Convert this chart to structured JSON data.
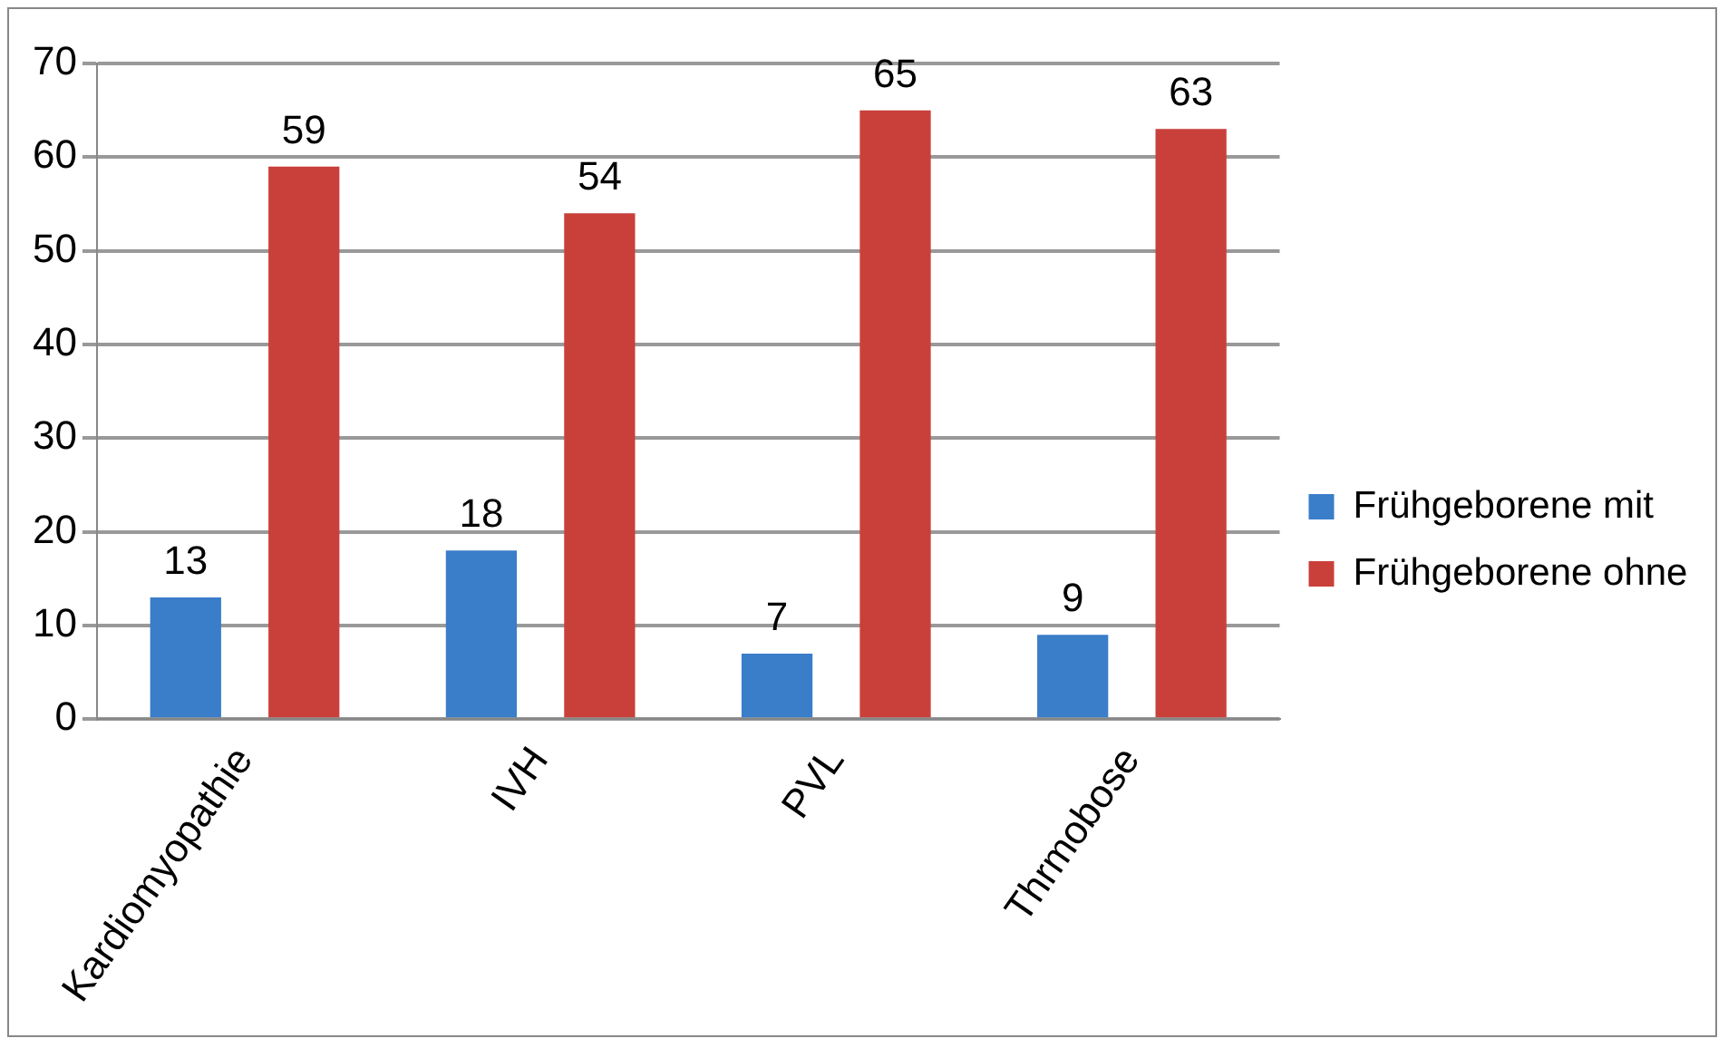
{
  "chart_data": {
    "type": "bar",
    "categories": [
      "Kardiomyopathie",
      "IVH",
      "PVL",
      "Thrmobose"
    ],
    "series": [
      {
        "name": "Frühgeborene mit",
        "color": "#3a7dc9",
        "values": [
          13,
          18,
          7,
          9
        ]
      },
      {
        "name": "Frühgeborene ohne",
        "color": "#c9403a",
        "values": [
          59,
          54,
          65,
          63
        ]
      }
    ],
    "ylim": [
      0,
      70
    ],
    "yticks": [
      0,
      10,
      20,
      30,
      40,
      50,
      60,
      70
    ],
    "grid": "y",
    "legend": "right",
    "data_labels": true
  }
}
